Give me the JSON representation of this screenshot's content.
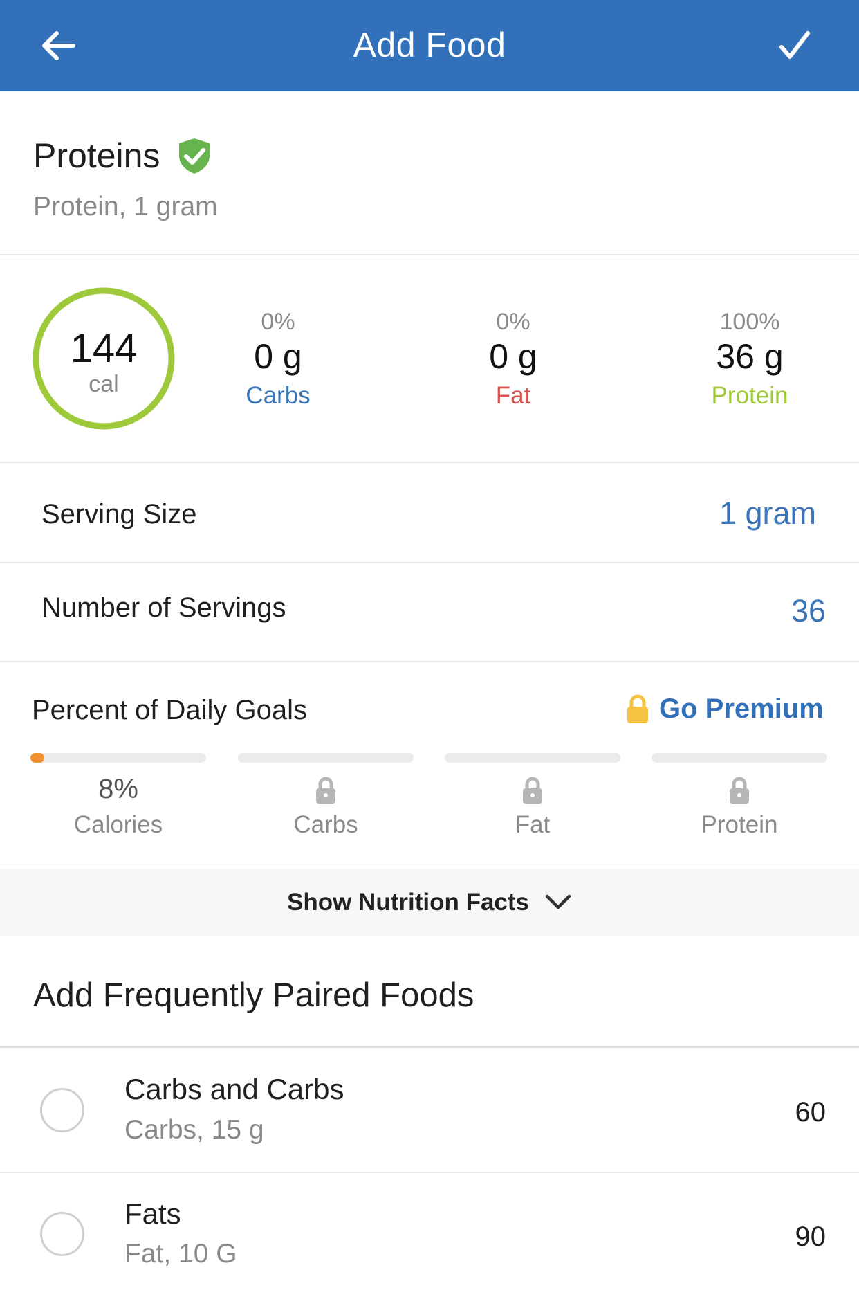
{
  "header": {
    "title": "Add Food",
    "back_icon": "arrow-left-icon",
    "confirm_icon": "checkmark-icon",
    "color": "#3270b9"
  },
  "food": {
    "name": "Proteins",
    "verified_icon": "verified-shield-icon",
    "description": "Protein, 1 gram"
  },
  "summary": {
    "calories": "144",
    "calories_unit": "cal",
    "ring_color": "#9dc93b",
    "macros": [
      {
        "percent": "0%",
        "amount": "0 g",
        "name": "Carbs",
        "color": "#3a74b8"
      },
      {
        "percent": "0%",
        "amount": "0 g",
        "name": "Fat",
        "color": "#d9534f"
      },
      {
        "percent": "100%",
        "amount": "36 g",
        "name": "Protein",
        "color": "#9dc93b"
      }
    ]
  },
  "serving_size": {
    "label": "Serving Size",
    "value": "1 gram"
  },
  "servings": {
    "label": "Number of Servings",
    "value": "36"
  },
  "daily_goals": {
    "title": "Percent of Daily Goals",
    "premium_label": "Go Premium",
    "premium_icon": "lock-icon",
    "items": [
      {
        "value": "8%",
        "name": "Calories",
        "progress": 0.08,
        "locked": false
      },
      {
        "value": "",
        "name": "Carbs",
        "progress": 0,
        "locked": true
      },
      {
        "value": "",
        "name": "Fat",
        "progress": 0,
        "locked": true
      },
      {
        "value": "",
        "name": "Protein",
        "progress": 0,
        "locked": true
      }
    ]
  },
  "nutrition_facts": {
    "label": "Show Nutrition Facts",
    "icon": "chevron-down-icon"
  },
  "paired": {
    "title": "Add Frequently Paired Foods",
    "items": [
      {
        "name": "Carbs and Carbs",
        "description": "Carbs, 15 g",
        "calories": "60"
      },
      {
        "name": "Fats",
        "description": "Fat, 10 G",
        "calories": "90"
      }
    ]
  }
}
